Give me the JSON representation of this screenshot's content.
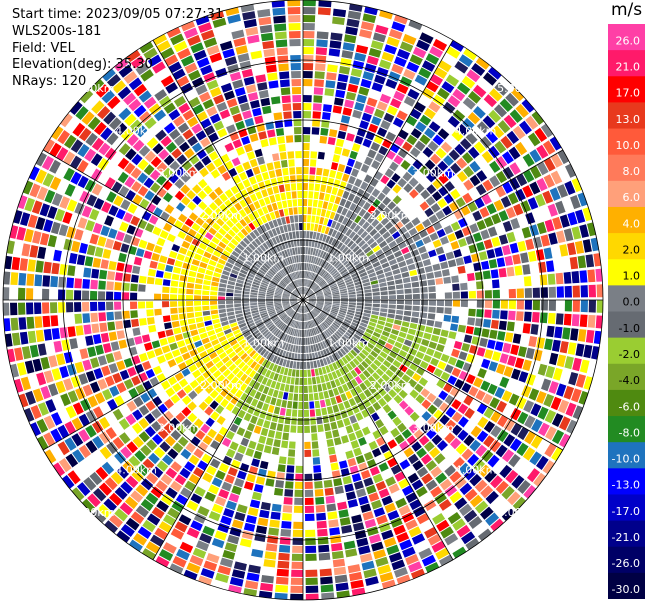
{
  "header": {
    "start_time": "Start time: 2023/09/05 07:27:31",
    "instrument": "WLS200s-181",
    "field": "Field: VEL",
    "elevation": "Elevation(deg): 35.30",
    "nrays": "NRays: 120"
  },
  "colorbar": {
    "unit": "m/s",
    "ticks": [
      "26.0",
      "21.0",
      "17.0",
      "13.0",
      "10.0",
      "8.0",
      "6.0",
      "4.0",
      "2.0",
      "1.0",
      "0.0",
      "-1.0",
      "-2.0",
      "-4.0",
      "-6.0",
      "-8.0",
      "-10.0",
      "-13.0",
      "-17.0",
      "-21.0",
      "-26.0",
      "-30.0"
    ],
    "colors": [
      "#ff3fa6",
      "#ff1a6a",
      "#ff0000",
      "#e8391d",
      "#ff5a3a",
      "#ff7a5a",
      "#ffa07a",
      "#ffb000",
      "#ffd800",
      "#ffff00",
      "#7a7f86",
      "#666b72",
      "#9acd32",
      "#7aa628",
      "#4f8a10",
      "#228b22",
      "#1e73be",
      "#0000ff",
      "#0000c8",
      "#00008b",
      "#000066",
      "#000044",
      "#1c1c5a"
    ]
  },
  "ring_labels": [
    "1.00km",
    "2.00km",
    "3.00km",
    "4.00km",
    "5.00km"
  ],
  "chart_data": {
    "type": "heatmap",
    "field": "VEL",
    "unit": "m/s",
    "nrays": 120,
    "range_rings_km": [
      1,
      2,
      3,
      4,
      5
    ],
    "color_scale": [
      -30,
      -26,
      -21,
      -17,
      -13,
      -10,
      -8,
      -6,
      -4,
      -2,
      -1,
      0,
      1,
      2,
      4,
      6,
      8,
      10,
      13,
      17,
      21,
      26
    ]
  }
}
